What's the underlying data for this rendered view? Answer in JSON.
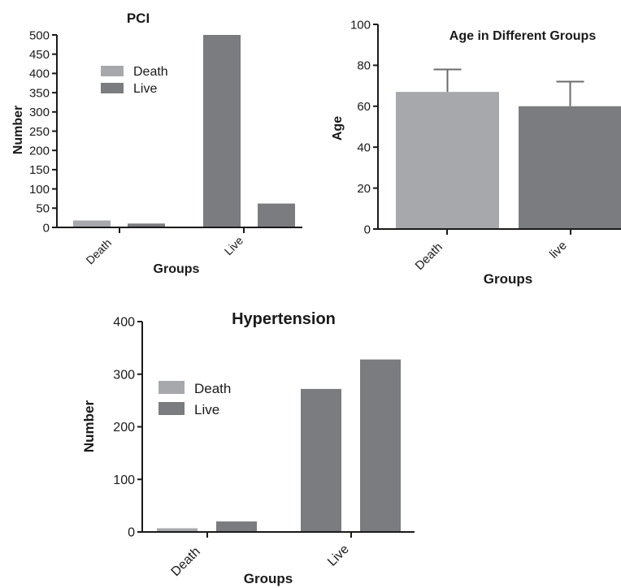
{
  "colors": {
    "death": "#a7a8ab",
    "live": "#7b7c80",
    "axis": "#1a1a1a",
    "error_bar": "#6b6b6b"
  },
  "chart_data": [
    {
      "id": "pci",
      "type": "bar",
      "title": "PCI",
      "xlabel": "Groups",
      "ylabel": "Number",
      "ylim": [
        0,
        500
      ],
      "yticks": [
        0,
        50,
        100,
        150,
        200,
        250,
        300,
        350,
        400,
        450,
        500
      ],
      "categories": [
        "Death",
        "Live"
      ],
      "series": [
        {
          "name": "Death",
          "color_key": "death",
          "values": [
            18,
            null
          ]
        },
        {
          "name": "Live",
          "color_key": "live",
          "values": [
            10,
            500
          ]
        },
        {
          "name": "",
          "color_key": "live",
          "values": [
            null,
            62
          ]
        }
      ],
      "legend": {
        "placement": "top-left",
        "entries": [
          "Death",
          "Live"
        ]
      },
      "grid": false
    },
    {
      "id": "age",
      "type": "bar",
      "title": "Age in Different Groups",
      "xlabel": "Groups",
      "ylabel": "Age",
      "ylim": [
        0,
        100
      ],
      "yticks": [
        0,
        20,
        40,
        60,
        80,
        100
      ],
      "categories": [
        "Death",
        "live"
      ],
      "values": [
        67,
        60
      ],
      "error_upper": [
        78,
        72
      ],
      "colors": [
        "death",
        "live"
      ],
      "legend": null,
      "grid": false
    },
    {
      "id": "hypertension",
      "type": "bar",
      "title": "Hypertension",
      "xlabel": "Groups",
      "ylabel": "Number",
      "ylim": [
        0,
        400
      ],
      "yticks": [
        0,
        100,
        200,
        300,
        400
      ],
      "categories": [
        "Death",
        "Live"
      ],
      "series": [
        {
          "name": "Death",
          "color_key": "death",
          "values": [
            7,
            null
          ]
        },
        {
          "name": "Live",
          "color_key": "live",
          "values": [
            20,
            272
          ]
        },
        {
          "name": "",
          "color_key": "live",
          "values": [
            null,
            328
          ]
        }
      ],
      "legend": {
        "placement": "top-left",
        "entries": [
          "Death",
          "Live"
        ]
      },
      "grid": false
    }
  ]
}
